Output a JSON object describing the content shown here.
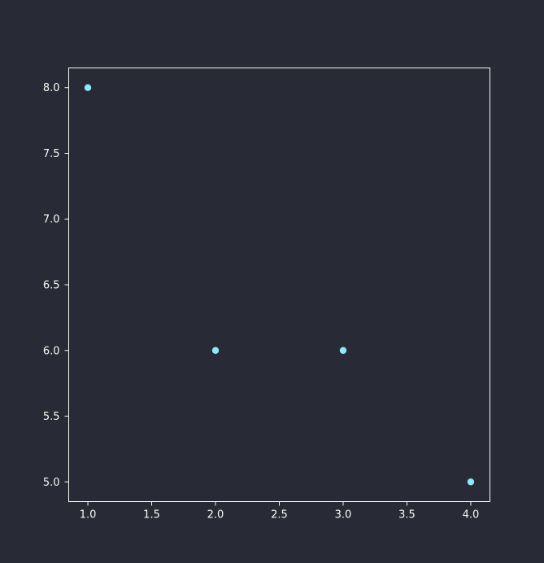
{
  "chart_data": {
    "type": "scatter",
    "title": "",
    "xlabel": "",
    "ylabel": "",
    "x": [
      1.0,
      2.0,
      3.0,
      4.0
    ],
    "y": [
      8.0,
      6.0,
      6.0,
      5.0
    ],
    "xlim": [
      0.85,
      4.15
    ],
    "ylim": [
      4.85,
      8.15
    ],
    "xticks": [
      1.0,
      1.5,
      2.0,
      2.5,
      3.0,
      3.5,
      4.0
    ],
    "xtick_labels": [
      "1.0",
      "1.5",
      "2.0",
      "2.5",
      "3.0",
      "3.5",
      "4.0"
    ],
    "yticks": [
      5.0,
      5.5,
      6.0,
      6.5,
      7.0,
      7.5,
      8.0
    ],
    "ytick_labels": [
      "5.0",
      "5.5",
      "6.0",
      "6.5",
      "7.0",
      "7.5",
      "8.0"
    ],
    "grid": false,
    "colors": {
      "background": "#282a36",
      "axes_edge": "#f8f8f2",
      "text": "#f8f8f2",
      "marker": "#8be9fd"
    }
  }
}
